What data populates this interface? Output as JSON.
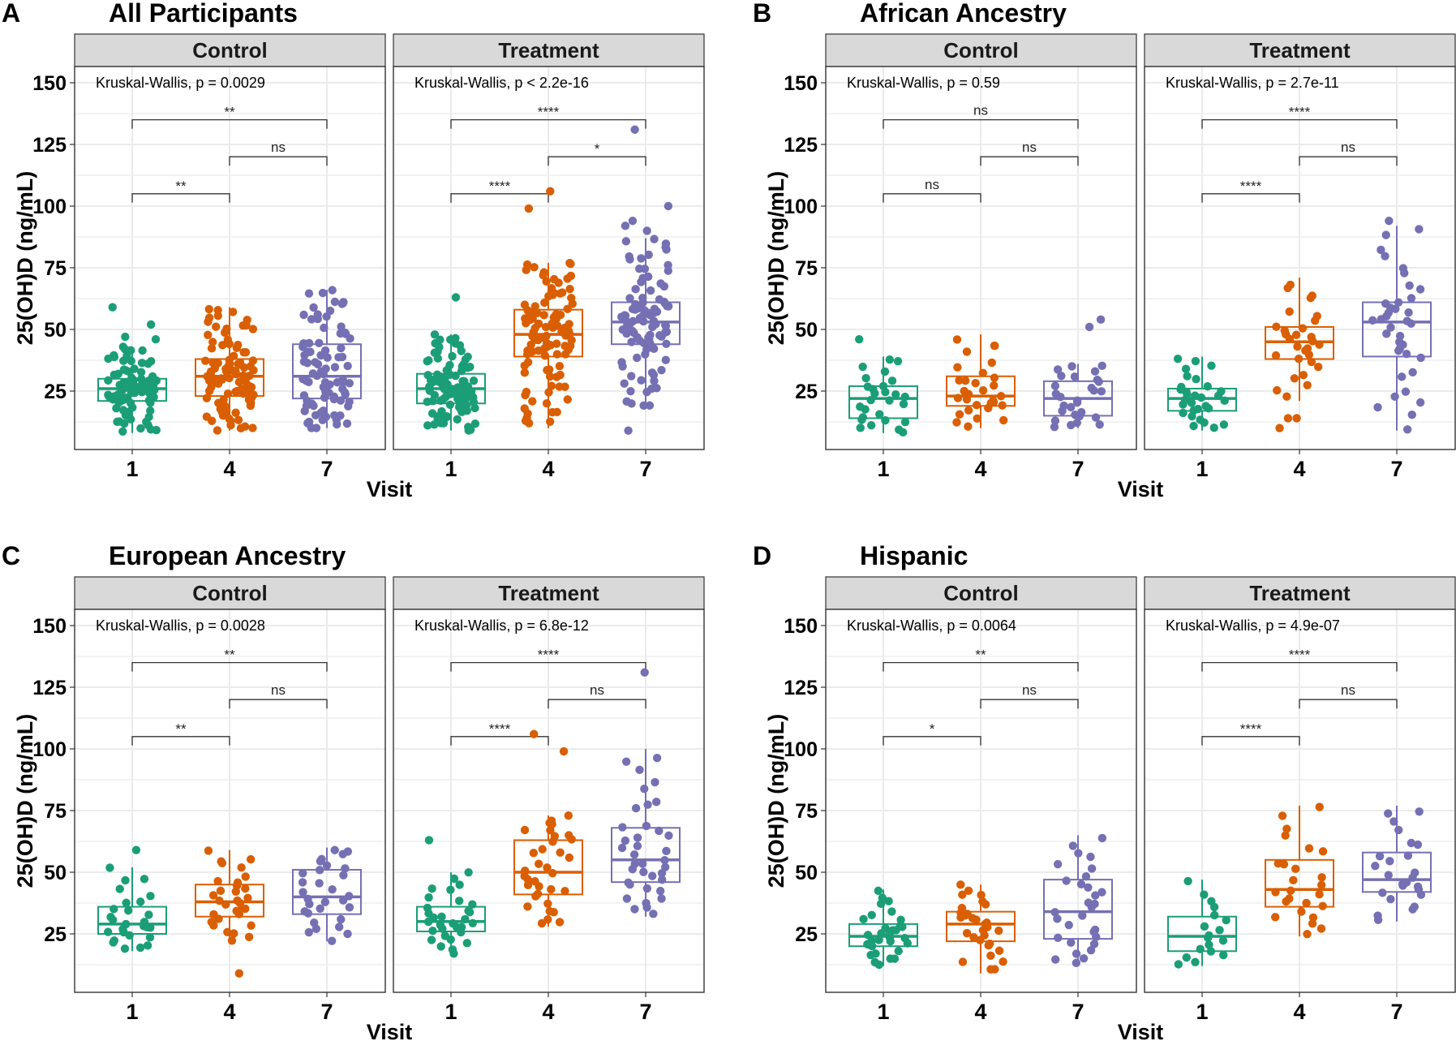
{
  "figure": {
    "colors": {
      "visit_1": "#1B9E77",
      "visit_4": "#D95F02",
      "visit_7": "#7570B3",
      "strip_bg": "#D9D9D9",
      "grid": "#EBEBEB",
      "frame": "#333333"
    }
  },
  "chart_data": [
    {
      "type": "box",
      "letter": "A",
      "title": "All Participants",
      "xlabel": "Visit",
      "ylabel": "25(OH)D (ng/mL)",
      "yticks": [
        25,
        50,
        75,
        100,
        125,
        150
      ],
      "ylim": [
        1,
        157
      ],
      "categories": [
        "1",
        "4",
        "7"
      ],
      "facets": [
        {
          "name": "Control",
          "kruskal_wallis": "Kruskal-Wallis, p = 0.0029",
          "comparisons": [
            {
              "from": "1",
              "to": "7",
              "y": 135,
              "label": "**"
            },
            {
              "from": "4",
              "to": "7",
              "y": 120,
              "label": "ns"
            },
            {
              "from": "1",
              "to": "4",
              "y": 105,
              "label": "**"
            }
          ],
          "groups": [
            {
              "visit": "1",
              "n": 90,
              "whisker_low": 8,
              "q1": 21,
              "median": 26,
              "q3": 30,
              "whisker_high": 43,
              "outliers": [
                59,
                52,
                47,
                46
              ]
            },
            {
              "visit": "4",
              "n": 95,
              "whisker_low": 9,
              "q1": 23,
              "median": 31,
              "q3": 38,
              "whisker_high": 59,
              "outliers": []
            },
            {
              "visit": "7",
              "n": 90,
              "whisker_low": 10,
              "q1": 22,
              "median": 31,
              "q3": 44,
              "whisker_high": 66,
              "outliers": []
            }
          ]
        },
        {
          "name": "Treatment",
          "kruskal_wallis": "Kruskal-Wallis, p < 2.2e-16",
          "comparisons": [
            {
              "from": "1",
              "to": "7",
              "y": 135,
              "label": "****"
            },
            {
              "from": "4",
              "to": "7",
              "y": 120,
              "label": "*"
            },
            {
              "from": "1",
              "to": "4",
              "y": 105,
              "label": "****"
            }
          ],
          "groups": [
            {
              "visit": "1",
              "n": 95,
              "whisker_low": 9,
              "q1": 20,
              "median": 26,
              "q3": 32,
              "whisker_high": 48,
              "outliers": [
                63
              ]
            },
            {
              "visit": "4",
              "n": 105,
              "whisker_low": 10,
              "q1": 39,
              "median": 48,
              "q3": 58,
              "whisker_high": 77,
              "outliers": [
                99,
                106
              ]
            },
            {
              "visit": "7",
              "n": 100,
              "whisker_low": 18,
              "q1": 44,
              "median": 53,
              "q3": 61,
              "whisker_high": 87,
              "outliers": [
                131,
                100,
                94,
                92,
                90,
                9
              ]
            }
          ]
        }
      ]
    },
    {
      "type": "box",
      "letter": "B",
      "title": "African Ancestry",
      "xlabel": "Visit",
      "ylabel": "25(OH)D (ng/mL)",
      "yticks": [
        25,
        50,
        75,
        100,
        125,
        150
      ],
      "ylim": [
        1,
        157
      ],
      "categories": [
        "1",
        "4",
        "7"
      ],
      "facets": [
        {
          "name": "Control",
          "kruskal_wallis": "Kruskal-Wallis, p = 0.59",
          "comparisons": [
            {
              "from": "1",
              "to": "7",
              "y": 135,
              "label": "ns"
            },
            {
              "from": "4",
              "to": "7",
              "y": 120,
              "label": "ns"
            },
            {
              "from": "1",
              "to": "4",
              "y": 105,
              "label": "ns"
            }
          ],
          "groups": [
            {
              "visit": "1",
              "n": 28,
              "whisker_low": 8,
              "q1": 14,
              "median": 22,
              "q3": 27,
              "whisker_high": 39,
              "outliers": [
                46
              ]
            },
            {
              "visit": "4",
              "n": 30,
              "whisker_low": 10,
              "q1": 19,
              "median": 23,
              "q3": 31,
              "whisker_high": 48,
              "outliers": []
            },
            {
              "visit": "7",
              "n": 30,
              "whisker_low": 10,
              "q1": 15,
              "median": 22,
              "q3": 29,
              "whisker_high": 36,
              "outliers": [
                54,
                51
              ]
            }
          ]
        },
        {
          "name": "Treatment",
          "kruskal_wallis": "Kruskal-Wallis, p = 2.7e-11",
          "comparisons": [
            {
              "from": "1",
              "to": "7",
              "y": 135,
              "label": "****"
            },
            {
              "from": "4",
              "to": "7",
              "y": 120,
              "label": "ns"
            },
            {
              "from": "1",
              "to": "4",
              "y": 105,
              "label": "****"
            }
          ],
          "groups": [
            {
              "visit": "1",
              "n": 30,
              "whisker_low": 9,
              "q1": 17,
              "median": 22,
              "q3": 26,
              "whisker_high": 39,
              "outliers": []
            },
            {
              "visit": "4",
              "n": 32,
              "whisker_low": 21,
              "q1": 38,
              "median": 45,
              "q3": 51,
              "whisker_high": 71,
              "outliers": [
                10,
                14,
                14
              ]
            },
            {
              "visit": "7",
              "n": 38,
              "whisker_low": 9,
              "q1": 39,
              "median": 53,
              "q3": 61,
              "whisker_high": 92,
              "outliers": [
                94
              ]
            }
          ]
        }
      ]
    },
    {
      "type": "box",
      "letter": "C",
      "title": "European Ancestry",
      "xlabel": "Visit",
      "ylabel": "25(OH)D (ng/mL)",
      "yticks": [
        25,
        50,
        75,
        100,
        125,
        150
      ],
      "ylim": [
        1,
        157
      ],
      "categories": [
        "1",
        "4",
        "7"
      ],
      "facets": [
        {
          "name": "Control",
          "kruskal_wallis": "Kruskal-Wallis, p = 0.0028",
          "comparisons": [
            {
              "from": "1",
              "to": "7",
              "y": 135,
              "label": "**"
            },
            {
              "from": "4",
              "to": "7",
              "y": 120,
              "label": "ns"
            },
            {
              "from": "1",
              "to": "4",
              "y": 105,
              "label": "**"
            }
          ],
          "groups": [
            {
              "visit": "1",
              "n": 28,
              "whisker_low": 18,
              "q1": 25,
              "median": 29,
              "q3": 36,
              "whisker_high": 52,
              "outliers": [
                59
              ]
            },
            {
              "visit": "4",
              "n": 32,
              "whisker_low": 22,
              "q1": 32,
              "median": 38,
              "q3": 45,
              "whisker_high": 59,
              "outliers": [
                9
              ]
            },
            {
              "visit": "7",
              "n": 30,
              "whisker_low": 22,
              "q1": 33,
              "median": 40,
              "q3": 51,
              "whisker_high": 60,
              "outliers": []
            }
          ]
        },
        {
          "name": "Treatment",
          "kruskal_wallis": "Kruskal-Wallis, p = 6.8e-12",
          "comparisons": [
            {
              "from": "1",
              "to": "7",
              "y": 135,
              "label": "****"
            },
            {
              "from": "4",
              "to": "7",
              "y": 120,
              "label": "ns"
            },
            {
              "from": "1",
              "to": "4",
              "y": 105,
              "label": "****"
            }
          ],
          "groups": [
            {
              "visit": "1",
              "n": 32,
              "whisker_low": 16,
              "q1": 26,
              "median": 30,
              "q3": 36,
              "whisker_high": 50,
              "outliers": [
                63
              ]
            },
            {
              "visit": "4",
              "n": 36,
              "whisker_low": 28,
              "q1": 41,
              "median": 50,
              "q3": 63,
              "whisker_high": 73,
              "outliers": [
                99,
                106
              ]
            },
            {
              "visit": "7",
              "n": 38,
              "whisker_low": 32,
              "q1": 46,
              "median": 55,
              "q3": 68,
              "whisker_high": 100,
              "outliers": [
                131
              ]
            }
          ]
        }
      ]
    },
    {
      "type": "box",
      "letter": "D",
      "title": "Hispanic",
      "xlabel": "Visit",
      "ylabel": "25(OH)D (ng/mL)",
      "yticks": [
        25,
        50,
        75,
        100,
        125,
        150
      ],
      "ylim": [
        1,
        157
      ],
      "categories": [
        "1",
        "4",
        "7"
      ],
      "facets": [
        {
          "name": "Control",
          "kruskal_wallis": "Kruskal-Wallis, p = 0.0064",
          "comparisons": [
            {
              "from": "1",
              "to": "7",
              "y": 135,
              "label": "**"
            },
            {
              "from": "4",
              "to": "7",
              "y": 120,
              "label": "ns"
            },
            {
              "from": "1",
              "to": "4",
              "y": 105,
              "label": "*"
            }
          ],
          "groups": [
            {
              "visit": "1",
              "n": 32,
              "whisker_low": 12,
              "q1": 20,
              "median": 24,
              "q3": 29,
              "whisker_high": 43,
              "outliers": []
            },
            {
              "visit": "4",
              "n": 32,
              "whisker_low": 9,
              "q1": 22,
              "median": 29,
              "q3": 34,
              "whisker_high": 45,
              "outliers": []
            },
            {
              "visit": "7",
              "n": 30,
              "whisker_low": 12,
              "q1": 23,
              "median": 34,
              "q3": 47,
              "whisker_high": 65,
              "outliers": []
            }
          ]
        },
        {
          "name": "Treatment",
          "kruskal_wallis": "Kruskal-Wallis, p = 4.9e-07",
          "comparisons": [
            {
              "from": "1",
              "to": "7",
              "y": 135,
              "label": "****"
            },
            {
              "from": "4",
              "to": "7",
              "y": 120,
              "label": "ns"
            },
            {
              "from": "1",
              "to": "4",
              "y": 105,
              "label": "****"
            }
          ],
          "groups": [
            {
              "visit": "1",
              "n": 18,
              "whisker_low": 12,
              "q1": 18,
              "median": 24,
              "q3": 32,
              "whisker_high": 47,
              "outliers": []
            },
            {
              "visit": "4",
              "n": 25,
              "whisker_low": 24,
              "q1": 36,
              "median": 43,
              "q3": 55,
              "whisker_high": 77,
              "outliers": []
            },
            {
              "visit": "7",
              "n": 25,
              "whisker_low": 30,
              "q1": 42,
              "median": 47,
              "q3": 58,
              "whisker_high": 77,
              "outliers": []
            }
          ]
        }
      ]
    }
  ]
}
